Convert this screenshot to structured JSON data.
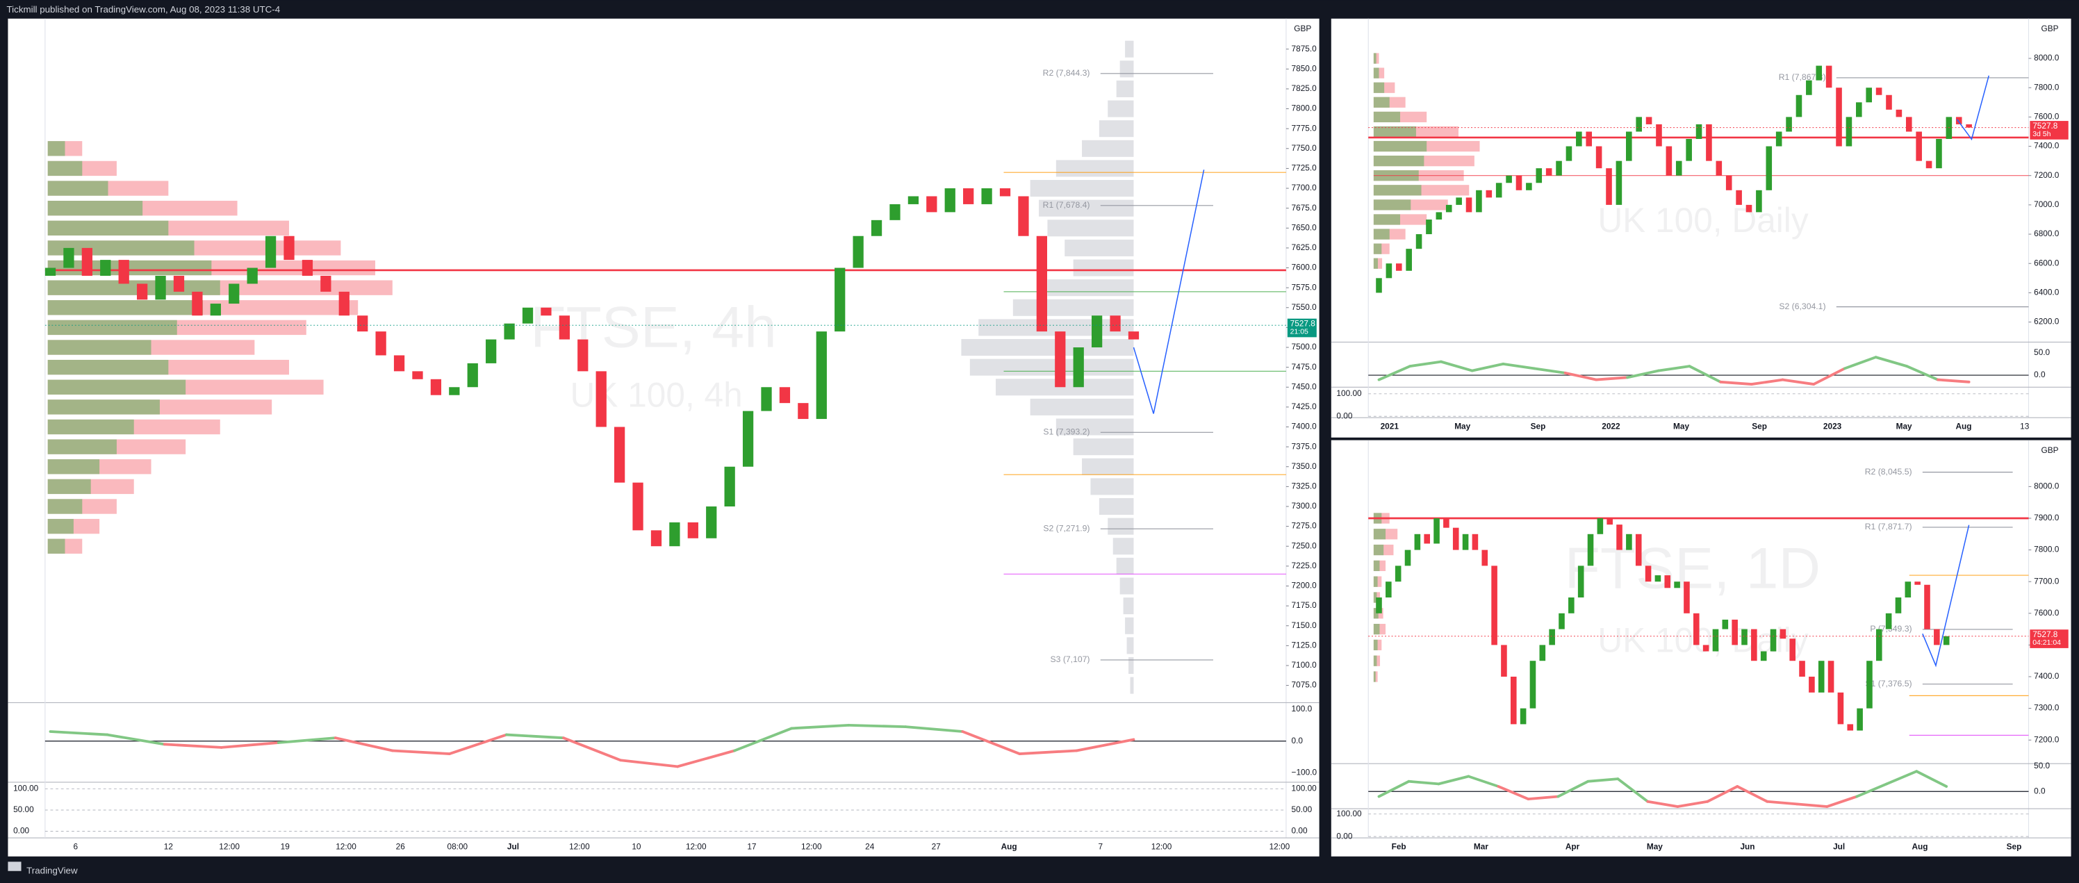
{
  "header": "Tickmill published on TradingView.com, Aug 08, 2023 11:38 UTC-4",
  "footer": "TradingView",
  "panels": [
    {
      "currency": "GBP",
      "watermark": "FTSE, 4h",
      "watermark2": "UK 100, 4h",
      "yticks": [
        {
          "value": 7875,
          "label": "7875.0"
        },
        {
          "value": 7850,
          "label": "7850.0"
        },
        {
          "value": 7825,
          "label": "7825.0"
        },
        {
          "value": 7800,
          "label": "7800.0"
        },
        {
          "value": 7775,
          "label": "7775.0"
        },
        {
          "value": 7750,
          "label": "7750.0"
        },
        {
          "value": 7725,
          "label": "7725.0"
        },
        {
          "value": 7700,
          "label": "7700.0"
        },
        {
          "value": 7675,
          "label": "7675.0"
        },
        {
          "value": 7650,
          "label": "7650.0"
        },
        {
          "value": 7625,
          "label": "7625.0"
        },
        {
          "value": 7600,
          "label": "7600.0"
        },
        {
          "value": 7575,
          "label": "7575.0"
        },
        {
          "value": 7550,
          "label": "7550.0"
        },
        {
          "value": 7525,
          "label": "7525.0"
        },
        {
          "value": 7500,
          "label": "7500.0"
        },
        {
          "value": 7475,
          "label": "7475.0"
        },
        {
          "value": 7450,
          "label": "7450.0"
        },
        {
          "value": 7425,
          "label": "7425.0"
        },
        {
          "value": 7400,
          "label": "7400.0"
        },
        {
          "value": 7375,
          "label": "7375.0"
        },
        {
          "value": 7350,
          "label": "7350.0"
        },
        {
          "value": 7325,
          "label": "7325.0"
        },
        {
          "value": 7300,
          "label": "7300.0"
        },
        {
          "value": 7275,
          "label": "7275.0"
        },
        {
          "value": 7250,
          "label": "7250.0"
        },
        {
          "value": 7225,
          "label": "7225.0"
        },
        {
          "value": 7200,
          "label": "7200.0"
        },
        {
          "value": 7175,
          "label": "7175.0"
        },
        {
          "value": 7150,
          "label": "7150.0"
        },
        {
          "value": 7125,
          "label": "7125.0"
        },
        {
          "value": 7100,
          "label": "7100.0"
        },
        {
          "value": 7075,
          "label": "7075.0"
        }
      ],
      "time_labels": [
        "6",
        "12",
        "12:00",
        "19",
        "12:00",
        "26",
        "08:00",
        "Jul",
        "12:00",
        "10",
        "12:00",
        "17",
        "12:00",
        "24",
        "27",
        "Aug",
        "7",
        "12:00",
        "12:00"
      ],
      "open": 7590,
      "closes": [
        7600,
        7625,
        7590,
        7610,
        7580,
        7560,
        7590,
        7570,
        7540,
        7555,
        7580,
        7600,
        7640,
        7610,
        7590,
        7570,
        7540,
        7520,
        7490,
        7470,
        7460,
        7440,
        7450,
        7480,
        7510,
        7530,
        7550,
        7540,
        7510,
        7470,
        7400,
        7330,
        7270,
        7250,
        7280,
        7260,
        7300,
        7350,
        7420,
        7450,
        7430,
        7410,
        7520,
        7600,
        7640,
        7660,
        7680,
        7690,
        7670,
        7700,
        7680,
        7700,
        7690,
        7640,
        7520,
        7450,
        7500,
        7540,
        7520,
        7510
      ],
      "osc": [
        30,
        20,
        -10,
        -20,
        -5,
        10,
        -30,
        -40,
        20,
        10,
        -60,
        -80,
        -30,
        40,
        50,
        45,
        30,
        -40,
        -30,
        5
      ],
      "osc_labels": [
        {
          "value": 100,
          "label": "100.0"
        },
        {
          "value": 0,
          "label": "0.0"
        },
        {
          "value": -100,
          "label": "−100.0"
        }
      ],
      "stoch_labels": [
        {
          "value": 100,
          "label": "100.00"
        },
        {
          "value": 50,
          "label": "50.00"
        },
        {
          "value": 0,
          "label": "0.00"
        }
      ],
      "profile": [
        [
          7750,
          10
        ],
        [
          7725,
          20
        ],
        [
          7700,
          35
        ],
        [
          7675,
          55
        ],
        [
          7650,
          70
        ],
        [
          7625,
          85
        ],
        [
          7600,
          95
        ],
        [
          7575,
          100
        ],
        [
          7550,
          90
        ],
        [
          7525,
          75
        ],
        [
          7500,
          60
        ],
        [
          7475,
          70
        ],
        [
          7450,
          80
        ],
        [
          7425,
          65
        ],
        [
          7400,
          50
        ],
        [
          7375,
          40
        ],
        [
          7350,
          30
        ],
        [
          7325,
          25
        ],
        [
          7300,
          20
        ],
        [
          7275,
          15
        ],
        [
          7250,
          10
        ]
      ],
      "profile2": [
        [
          7875,
          5
        ],
        [
          7850,
          8
        ],
        [
          7825,
          10
        ],
        [
          7800,
          15
        ],
        [
          7775,
          20
        ],
        [
          7750,
          30
        ],
        [
          7725,
          45
        ],
        [
          7700,
          60
        ],
        [
          7675,
          55
        ],
        [
          7650,
          50
        ],
        [
          7625,
          40
        ],
        [
          7600,
          35
        ],
        [
          7575,
          50
        ],
        [
          7550,
          70
        ],
        [
          7525,
          90
        ],
        [
          7500,
          100
        ],
        [
          7475,
          95
        ],
        [
          7450,
          80
        ],
        [
          7425,
          60
        ],
        [
          7400,
          45
        ],
        [
          7375,
          35
        ],
        [
          7350,
          30
        ],
        [
          7325,
          25
        ],
        [
          7300,
          20
        ],
        [
          7275,
          15
        ],
        [
          7250,
          12
        ],
        [
          7225,
          10
        ],
        [
          7200,
          8
        ],
        [
          7175,
          6
        ],
        [
          7150,
          5
        ],
        [
          7125,
          4
        ],
        [
          7100,
          3
        ],
        [
          7075,
          2
        ]
      ],
      "pivots": [
        {
          "label": "R2 (7,844.3)",
          "value": 7844.3
        },
        {
          "label": "R1 (7,678.4)",
          "value": 7678.4
        },
        {
          "label": "S1 (7,393.2)",
          "value": 7393.2
        },
        {
          "label": "S2 (7,271.9)",
          "value": 7271.9
        },
        {
          "label": "S3 (7,107)",
          "value": 7107
        }
      ],
      "levels": [
        {
          "value": 7597,
          "color": "#f23645"
        },
        {
          "value": 7720,
          "color": "#ff9800"
        },
        {
          "value": 7340,
          "color": "#ff9800"
        },
        {
          "value": 7570,
          "color": "#4caf50"
        },
        {
          "value": 7470,
          "color": "#4caf50"
        },
        {
          "value": 7215,
          "color": "#e040fb"
        }
      ],
      "last": {
        "price": 7527.8,
        "timer": "21:05",
        "color": "#089981"
      }
    },
    {
      "currency": "GBP",
      "watermark": "UK 100, Daily",
      "watermark2": "",
      "yticks": [
        {
          "value": 8000,
          "label": "8000.0"
        },
        {
          "value": 7800,
          "label": "7800.0"
        },
        {
          "value": 7600,
          "label": "7600.0"
        },
        {
          "value": 7400,
          "label": "7400.0"
        },
        {
          "value": 7200,
          "label": "7200.0"
        },
        {
          "value": 7000,
          "label": "7000.0"
        },
        {
          "value": 6800,
          "label": "6800.0"
        },
        {
          "value": 6600,
          "label": "6600.0"
        },
        {
          "value": 6400,
          "label": "6400.0"
        },
        {
          "value": 6200,
          "label": "6200.0"
        }
      ],
      "time_labels": [
        "2021",
        "May",
        "Sep",
        "2022",
        "May",
        "Sep",
        "2023",
        "May",
        "Aug",
        "13"
      ],
      "open": 6400,
      "closes": [
        6500,
        6600,
        6550,
        6700,
        6800,
        6900,
        6950,
        7000,
        7050,
        6950,
        7100,
        7050,
        7150,
        7200,
        7100,
        7150,
        7250,
        7200,
        7300,
        7400,
        7500,
        7400,
        7250,
        7000,
        7300,
        7500,
        7600,
        7550,
        7400,
        7200,
        7300,
        7450,
        7550,
        7300,
        7200,
        7100,
        7000,
        6950,
        7100,
        7400,
        7500,
        7600,
        7750,
        7850,
        7950,
        7800,
        7400,
        7600,
        7700,
        7800,
        7750,
        7650,
        7600,
        7500,
        7300,
        7250,
        7450,
        7600,
        7550,
        7527.8
      ],
      "osc": [
        -10,
        20,
        30,
        10,
        25,
        15,
        5,
        -10,
        -5,
        10,
        20,
        -15,
        -20,
        -10,
        -20,
        15,
        40,
        20,
        -10,
        -15
      ],
      "osc_labels": [
        {
          "value": 50,
          "label": "50.0"
        },
        {
          "value": 0,
          "label": "0.0"
        }
      ],
      "stoch_labels": [
        {
          "value": 100,
          "label": "100.00"
        },
        {
          "value": 0,
          "label": "0.00"
        }
      ],
      "profile": [
        [
          8000,
          5
        ],
        [
          7900,
          10
        ],
        [
          7800,
          20
        ],
        [
          7700,
          30
        ],
        [
          7600,
          50
        ],
        [
          7500,
          80
        ],
        [
          7400,
          100
        ],
        [
          7300,
          95
        ],
        [
          7200,
          85
        ],
        [
          7100,
          90
        ],
        [
          7000,
          70
        ],
        [
          6900,
          50
        ],
        [
          6800,
          30
        ],
        [
          6700,
          15
        ],
        [
          6600,
          8
        ]
      ],
      "profile2": [],
      "pivots": [
        {
          "label": "R1 (7,867.8)",
          "value": 7867.8
        },
        {
          "label": "S2 (6,304.1)",
          "value": 6304.1
        }
      ],
      "levels": [
        {
          "value": 7460,
          "color": "#f23645"
        },
        {
          "value": 7200,
          "color": "#f23645"
        }
      ],
      "last": {
        "price": 7527.8,
        "timer": "3d 5h",
        "color": "#f23645"
      }
    },
    {
      "currency": "GBP",
      "watermark": "FTSE, 1D",
      "watermark2": "UK 100, Daily",
      "yticks": [
        {
          "value": 8000,
          "label": "8000.0"
        },
        {
          "value": 7900,
          "label": "7900.0"
        },
        {
          "value": 7800,
          "label": "7800.0"
        },
        {
          "value": 7700,
          "label": "7700.0"
        },
        {
          "value": 7600,
          "label": "7600.0"
        },
        {
          "value": 7500,
          "label": "7500.0"
        },
        {
          "value": 7400,
          "label": "7400.0"
        },
        {
          "value": 7300,
          "label": "7300.0"
        },
        {
          "value": 7200,
          "label": "7200.0"
        }
      ],
      "time_labels": [
        "Feb",
        "Mar",
        "Apr",
        "May",
        "Jun",
        "Jul",
        "Aug",
        "Sep"
      ],
      "open": 7600,
      "closes": [
        7650,
        7700,
        7750,
        7800,
        7850,
        7820,
        7900,
        7870,
        7800,
        7850,
        7800,
        7750,
        7500,
        7400,
        7250,
        7300,
        7450,
        7500,
        7550,
        7600,
        7650,
        7750,
        7850,
        7900,
        7880,
        7800,
        7850,
        7750,
        7700,
        7720,
        7680,
        7700,
        7600,
        7500,
        7480,
        7550,
        7580,
        7500,
        7550,
        7450,
        7480,
        7550,
        7520,
        7450,
        7400,
        7350,
        7450,
        7350,
        7250,
        7230,
        7300,
        7450,
        7550,
        7600,
        7650,
        7700,
        7690,
        7550,
        7500,
        7527.8
      ],
      "osc": [
        -10,
        20,
        15,
        30,
        10,
        -15,
        -10,
        20,
        25,
        -20,
        -30,
        -20,
        10,
        -20,
        -25,
        -30,
        -10,
        15,
        40,
        10
      ],
      "osc_labels": [
        {
          "value": 50,
          "label": "50.0"
        },
        {
          "value": 0,
          "label": "0.0"
        }
      ],
      "stoch_labels": [
        {
          "value": 100,
          "label": "100.00"
        },
        {
          "value": 0,
          "label": "0.00"
        }
      ],
      "profile": [
        [
          7900,
          20
        ],
        [
          7850,
          30
        ],
        [
          7800,
          25
        ],
        [
          7750,
          15
        ],
        [
          7700,
          10
        ],
        [
          7650,
          8
        ],
        [
          7600,
          12
        ],
        [
          7550,
          15
        ],
        [
          7500,
          10
        ],
        [
          7450,
          8
        ],
        [
          7400,
          5
        ]
      ],
      "profile2": [],
      "pivots": [
        {
          "label": "R2 (8,045.5)",
          "value": 8045.5
        },
        {
          "label": "R1 (7,871.7)",
          "value": 7871.7
        },
        {
          "label": "P (7,549.3)",
          "value": 7549.3
        },
        {
          "label": "S1 (7,376.5)",
          "value": 7376.5
        }
      ],
      "levels": [
        {
          "value": 7900,
          "color": "#f23645"
        },
        {
          "value": 7720,
          "color": "#ff9800"
        },
        {
          "value": 7340,
          "color": "#ff9800"
        },
        {
          "value": 7215,
          "color": "#e040fb"
        }
      ],
      "last": {
        "price": 7527.8,
        "timer": "04:21:04",
        "color": "#f23645"
      }
    }
  ]
}
